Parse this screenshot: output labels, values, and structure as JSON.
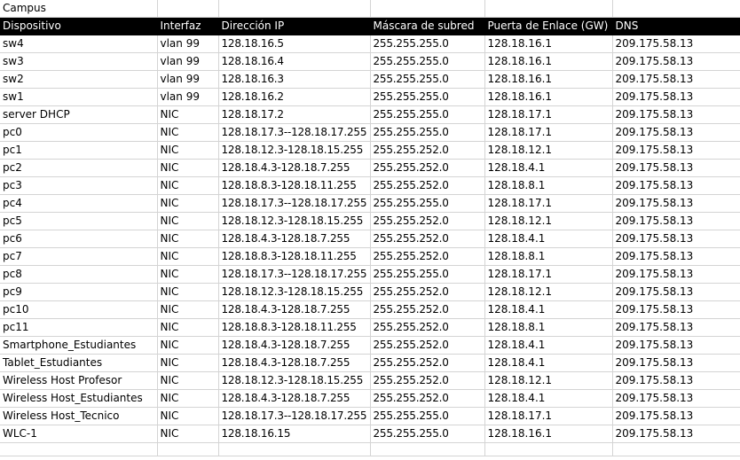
{
  "sheet": {
    "title": "Campus",
    "headers": [
      "Dispositivo",
      "Interfaz",
      "Dirección IP",
      "Máscara de subred",
      "Puerta de Enlace (GW)",
      "DNS"
    ],
    "rows": [
      [
        "sw4",
        "vlan 99",
        "128.18.16.5",
        "255.255.255.0",
        "128.18.16.1",
        "209.175.58.13"
      ],
      [
        "sw3",
        "vlan 99",
        "128.18.16.4",
        "255.255.255.0",
        "128.18.16.1",
        "209.175.58.13"
      ],
      [
        "sw2",
        "vlan 99",
        "128.18.16.3",
        "255.255.255.0",
        "128.18.16.1",
        "209.175.58.13"
      ],
      [
        "sw1",
        "vlan 99",
        "128.18.16.2",
        "255.255.255.0",
        "128.18.16.1",
        "209.175.58.13"
      ],
      [
        "server DHCP",
        "NIC",
        "128.18.17.2",
        "255.255.255.0",
        "128.18.17.1",
        "209.175.58.13"
      ],
      [
        "pc0",
        "NIC",
        "128.18.17.3--128.18.17.255",
        "255.255.255.0",
        "128.18.17.1",
        "209.175.58.13"
      ],
      [
        "pc1",
        "NIC",
        "128.18.12.3-128.18.15.255",
        "255.255.252.0",
        "128.18.12.1",
        "209.175.58.13"
      ],
      [
        "pc2",
        "NIC",
        "128.18.4.3-128.18.7.255",
        "255.255.252.0",
        "128.18.4.1",
        "209.175.58.13"
      ],
      [
        "pc3",
        "NIC",
        "128.18.8.3-128.18.11.255",
        "255.255.252.0",
        "128.18.8.1",
        "209.175.58.13"
      ],
      [
        "pc4",
        "NIC",
        "128.18.17.3--128.18.17.255",
        "255.255.255.0",
        "128.18.17.1",
        "209.175.58.13"
      ],
      [
        "pc5",
        "NIC",
        "128.18.12.3-128.18.15.255",
        "255.255.252.0",
        "128.18.12.1",
        "209.175.58.13"
      ],
      [
        "pc6",
        "NIC",
        "128.18.4.3-128.18.7.255",
        "255.255.252.0",
        "128.18.4.1",
        "209.175.58.13"
      ],
      [
        "pc7",
        "NIC",
        "128.18.8.3-128.18.11.255",
        "255.255.252.0",
        "128.18.8.1",
        "209.175.58.13"
      ],
      [
        "pc8",
        "NIC",
        "128.18.17.3--128.18.17.255",
        "255.255.255.0",
        "128.18.17.1",
        "209.175.58.13"
      ],
      [
        "pc9",
        "NIC",
        "128.18.12.3-128.18.15.255",
        "255.255.252.0",
        "128.18.12.1",
        "209.175.58.13"
      ],
      [
        "pc10",
        "NIC",
        "128.18.4.3-128.18.7.255",
        "255.255.252.0",
        "128.18.4.1",
        "209.175.58.13"
      ],
      [
        "pc11",
        "NIC",
        "128.18.8.3-128.18.11.255",
        "255.255.252.0",
        "128.18.8.1",
        "209.175.58.13"
      ],
      [
        "Smartphone_Estudiantes",
        "NIC",
        "128.18.4.3-128.18.7.255",
        "255.255.252.0",
        "128.18.4.1",
        "209.175.58.13"
      ],
      [
        "Tablet_Estudiantes",
        "NIC",
        "128.18.4.3-128.18.7.255",
        "255.255.252.0",
        "128.18.4.1",
        "209.175.58.13"
      ],
      [
        "Wireless Host Profesor",
        "NIC",
        "128.18.12.3-128.18.15.255",
        "255.255.252.0",
        "128.18.12.1",
        "209.175.58.13"
      ],
      [
        "Wireless Host_Estudiantes",
        "NIC",
        "128.18.4.3-128.18.7.255",
        "255.255.252.0",
        "128.18.4.1",
        "209.175.58.13"
      ],
      [
        "Wireless Host_Tecnico",
        "NIC",
        "128.18.17.3--128.18.17.255",
        "255.255.255.0",
        "128.18.17.1",
        "209.175.58.13"
      ],
      [
        "WLC-1",
        "NIC",
        "128.18.16.15",
        "255.255.255.0",
        "128.18.16.1",
        "209.175.58.13"
      ]
    ]
  }
}
